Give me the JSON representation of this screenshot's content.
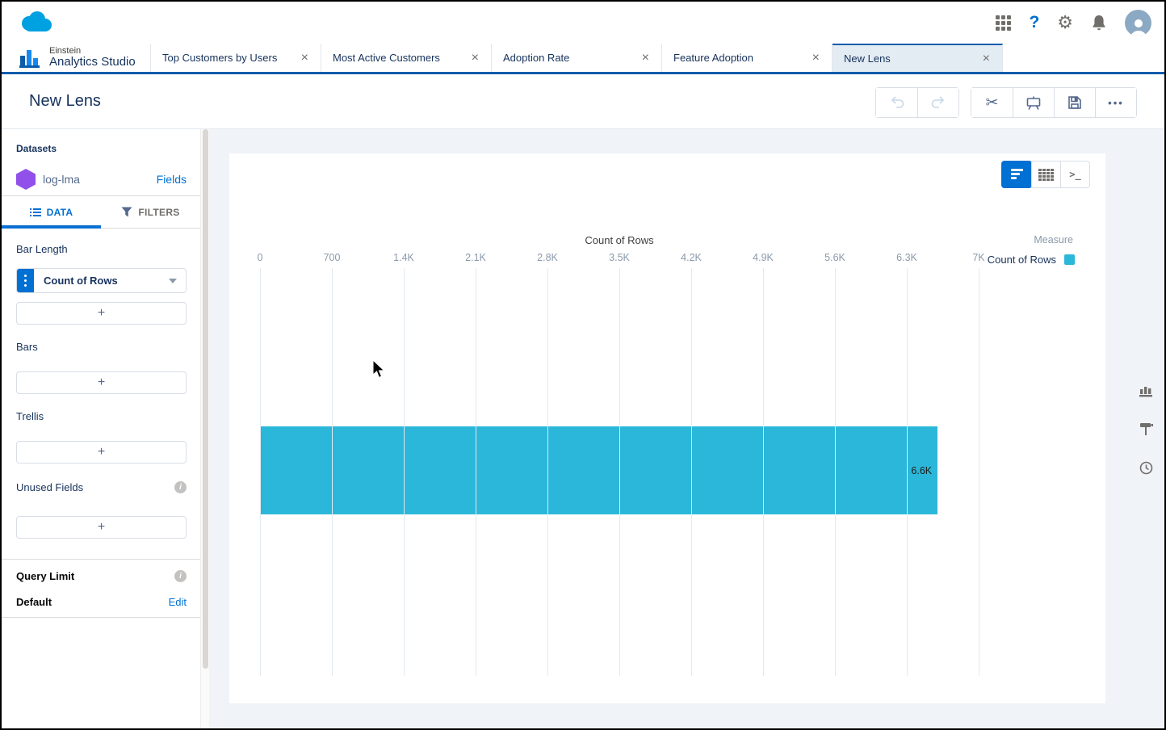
{
  "header": {
    "icons": [
      "app-launcher-icon",
      "help-icon",
      "setup-icon",
      "notifications-icon",
      "user-avatar"
    ],
    "help_glyph": "?"
  },
  "app": {
    "brand_small": "Einstein",
    "brand_large": "Analytics Studio"
  },
  "tabs": [
    {
      "label": "Top Customers by Users",
      "active": false
    },
    {
      "label": "Most Active Customers",
      "active": false
    },
    {
      "label": "Adoption Rate",
      "active": false
    },
    {
      "label": "Feature Adoption",
      "active": false
    },
    {
      "label": "New Lens",
      "active": true
    }
  ],
  "lens": {
    "title": "New Lens"
  },
  "toolbar": {
    "icons": [
      "undo-icon",
      "redo-icon",
      "clip-icon",
      "present-icon",
      "save-icon",
      "more-icon"
    ]
  },
  "sidebar": {
    "datasets_label": "Datasets",
    "dataset_name": "log-lma",
    "fields_link": "Fields",
    "tabs": [
      {
        "label": "DATA"
      },
      {
        "label": "FILTERS"
      }
    ],
    "bar_length_label": "Bar Length",
    "bar_length_field": "Count of Rows",
    "bars_label": "Bars",
    "trellis_label": "Trellis",
    "unused_fields_label": "Unused Fields",
    "add_label": "+",
    "query_limit_label": "Query Limit",
    "query_limit_value": "Default",
    "edit_link": "Edit"
  },
  "chart_data": {
    "type": "bar",
    "orientation": "horizontal",
    "axis_title": "Count of Rows",
    "categories": [
      "Count of Rows"
    ],
    "values": [
      6600
    ],
    "value_labels": [
      "6.6K"
    ],
    "xlim": [
      0,
      7000
    ],
    "x_ticks": [
      0,
      700,
      1400,
      2100,
      2800,
      3500,
      4200,
      4900,
      5600,
      6300,
      7000
    ],
    "x_tick_labels": [
      "0",
      "700",
      "1.4K",
      "2.1K",
      "2.8K",
      "3.5K",
      "4.2K",
      "4.9K",
      "5.6K",
      "6.3K",
      "7K"
    ],
    "grid": true,
    "legend": {
      "position": "top-right",
      "title": "Measure",
      "entries": [
        {
          "label": "Count of Rows",
          "color": "#2BB7D9"
        }
      ]
    },
    "bar_color": "#2BB7D9"
  },
  "colors": {
    "accent": "#0070D2",
    "brand_cloud": "#00A1E0",
    "bar": "#2BB7D9"
  }
}
